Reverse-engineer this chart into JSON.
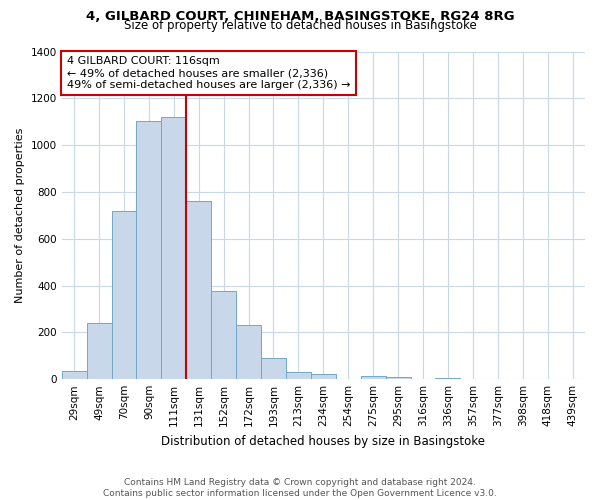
{
  "title_line1": "4, GILBARD COURT, CHINEHAM, BASINGSTOKE, RG24 8RG",
  "title_line2": "Size of property relative to detached houses in Basingstoke",
  "xlabel": "Distribution of detached houses by size in Basingstoke",
  "ylabel": "Number of detached properties",
  "bin_labels": [
    "29sqm",
    "49sqm",
    "70sqm",
    "90sqm",
    "111sqm",
    "131sqm",
    "152sqm",
    "172sqm",
    "193sqm",
    "213sqm",
    "234sqm",
    "254sqm",
    "275sqm",
    "295sqm",
    "316sqm",
    "336sqm",
    "357sqm",
    "377sqm",
    "398sqm",
    "418sqm",
    "439sqm"
  ],
  "bar_heights": [
    35,
    240,
    720,
    1105,
    1120,
    760,
    375,
    230,
    90,
    30,
    20,
    0,
    15,
    10,
    0,
    5,
    0,
    0,
    0,
    0,
    0
  ],
  "bar_color": "#c8d8ea",
  "bar_edge_color": "#6fa8c8",
  "vline_x_index": 4.5,
  "vline_color": "#cc0000",
  "annotation_line1": "4 GILBARD COURT: 116sqm",
  "annotation_line2": "← 49% of detached houses are smaller (2,336)",
  "annotation_line3": "49% of semi-detached houses are larger (2,336) →",
  "annotation_box_color": "#ffffff",
  "annotation_border_color": "#cc0000",
  "ylim": [
    0,
    1400
  ],
  "yticks": [
    0,
    200,
    400,
    600,
    800,
    1000,
    1200,
    1400
  ],
  "footer_line1": "Contains HM Land Registry data © Crown copyright and database right 2024.",
  "footer_line2": "Contains public sector information licensed under the Open Government Licence v3.0.",
  "bg_color": "#ffffff",
  "grid_color": "#c8d8e8",
  "title_fontsize": 9.5,
  "subtitle_fontsize": 8.5,
  "xlabel_fontsize": 8.5,
  "ylabel_fontsize": 8,
  "tick_fontsize": 7.5,
  "annotation_fontsize": 8,
  "footer_fontsize": 6.5
}
